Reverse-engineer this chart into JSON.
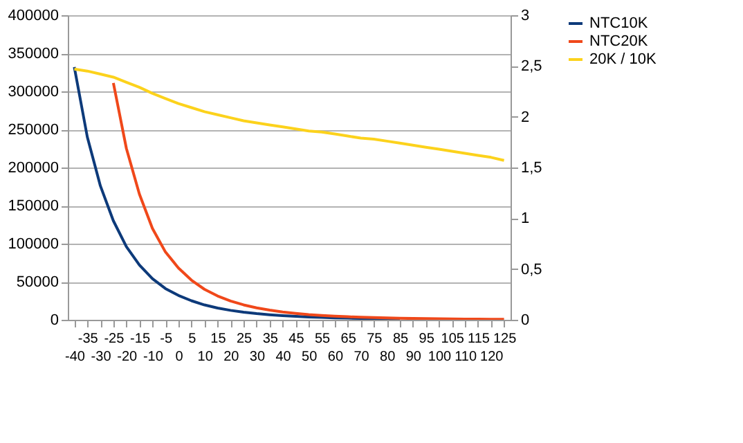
{
  "chart_data": {
    "type": "line",
    "categories": [
      "-40",
      "-35",
      "-30",
      "-25",
      "-20",
      "-15",
      "-10",
      "-5",
      "0",
      "5",
      "10",
      "15",
      "20",
      "25",
      "30",
      "35",
      "40",
      "45",
      "50",
      "55",
      "60",
      "65",
      "70",
      "75",
      "80",
      "85",
      "90",
      "95",
      "100",
      "105",
      "110",
      "115",
      "120",
      "125"
    ],
    "series": [
      {
        "name": "NTC10K",
        "color": "#0d3a7a",
        "values": [
          332000,
          240000,
          176000,
          130000,
          96000,
          72000,
          54000,
          41000,
          32000,
          25000,
          19500,
          15500,
          12400,
          10000,
          8100,
          6600,
          5400,
          4500,
          3700,
          3100,
          2600,
          2200,
          1850,
          1600,
          1350,
          1150,
          null,
          null,
          null,
          null,
          null,
          null,
          null,
          null
        ]
      },
      {
        "name": "NTC20K",
        "color": "#f0481a",
        "values": [
          null,
          null,
          null,
          311000,
          225000,
          165000,
          120000,
          89000,
          68000,
          52000,
          40000,
          31300,
          24700,
          19600,
          15700,
          12700,
          10300,
          8500,
          6900,
          5700,
          4800,
          4000,
          3300,
          2850,
          2400,
          2000,
          1720,
          1480,
          1280,
          1100,
          950,
          830,
          720,
          630
        ]
      },
      {
        "name": "20K / 10K",
        "color": "#fcd21c",
        "axis": "y2",
        "values": [
          2.47,
          2.45,
          2.42,
          2.39,
          2.34,
          2.29,
          2.23,
          2.18,
          2.13,
          2.09,
          2.05,
          2.02,
          1.99,
          1.96,
          1.94,
          1.92,
          1.9,
          1.88,
          1.86,
          1.85,
          1.83,
          1.81,
          1.79,
          1.78,
          1.76,
          1.74,
          1.72,
          1.7,
          1.68,
          1.66,
          1.64,
          1.62,
          1.6,
          1.57
        ]
      }
    ],
    "ylim": [
      0,
      400000
    ],
    "yticks": [
      0,
      50000,
      100000,
      150000,
      200000,
      250000,
      300000,
      350000,
      400000
    ],
    "y2lim": [
      0,
      3
    ],
    "y2ticks": [
      0,
      {
        "value": 0.5,
        "label": "0,5"
      },
      1,
      {
        "value": 1.5,
        "label": "1,5"
      },
      2,
      {
        "value": 2.5,
        "label": "2,5"
      },
      3
    ],
    "grid": "y",
    "legend": "right",
    "marker": "none",
    "line_style": "solid"
  }
}
